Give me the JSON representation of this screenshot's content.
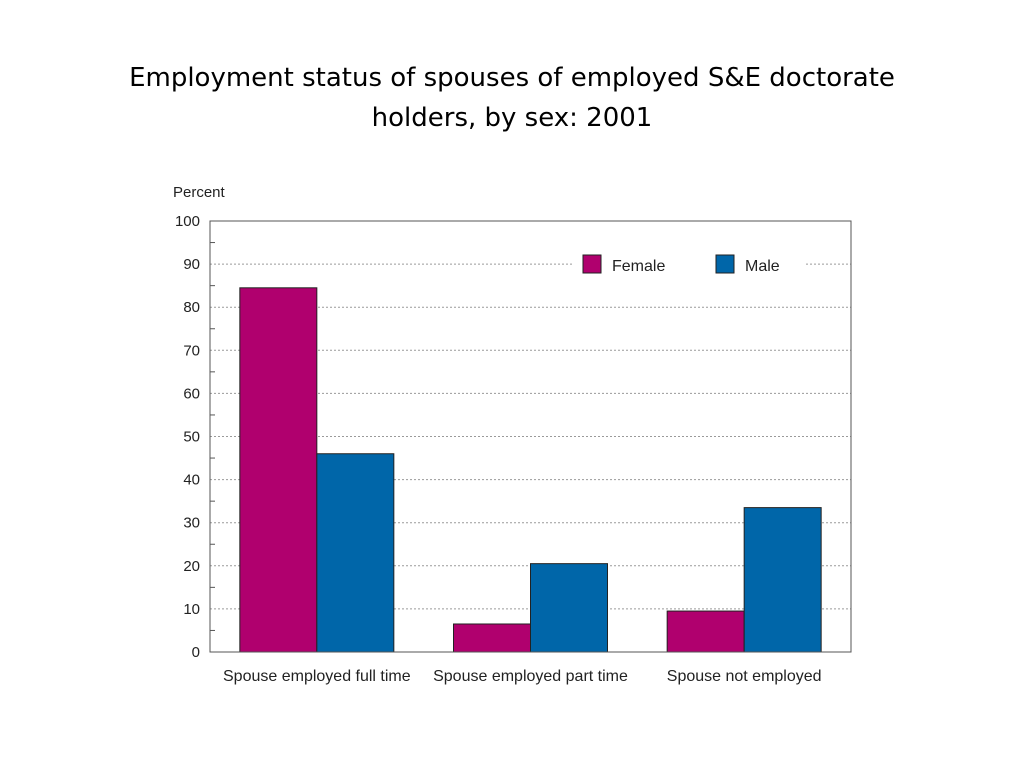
{
  "slide": {
    "title": "Employment status of spouses of employed S&E doctorate holders, by sex: 2001"
  },
  "chart_data": {
    "type": "bar",
    "title": "Employment status of spouses of employed S&E doctorate holders, by sex: 2001",
    "xlabel": "",
    "ylabel": "Percent",
    "ylim": [
      0,
      100
    ],
    "yticks": [
      0,
      10,
      20,
      30,
      40,
      50,
      60,
      70,
      80,
      90,
      100
    ],
    "categories": [
      "Spouse employed full time",
      "Spouse employed part time",
      "Spouse not employed"
    ],
    "series": [
      {
        "name": "Female",
        "color": "#B0006E",
        "values": [
          84.5,
          6.5,
          9.5
        ]
      },
      {
        "name": "Male",
        "color": "#0066A9",
        "values": [
          46,
          20.5,
          33.5
        ]
      }
    ],
    "grid": true,
    "legend": "top-right"
  }
}
